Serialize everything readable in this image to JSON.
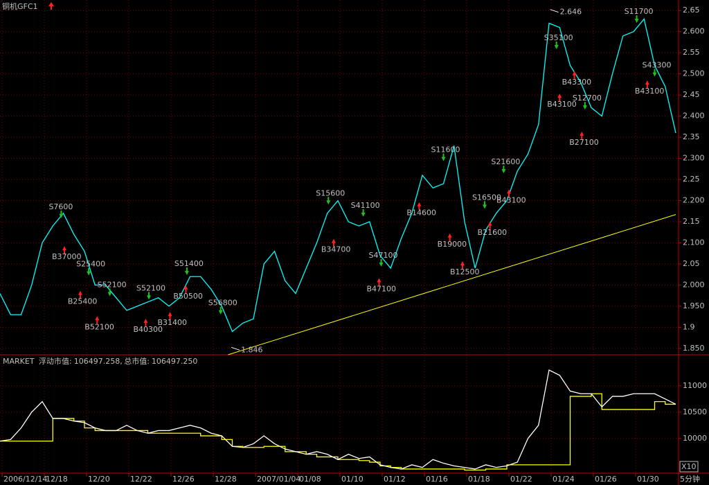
{
  "chart_data": [
    {
      "type": "line",
      "title": "铜机GFC1",
      "color": "#00ffff",
      "grid": true,
      "x": [
        0,
        1,
        2,
        3,
        4,
        5,
        6,
        7,
        8,
        9,
        10,
        11,
        12,
        13,
        14,
        15,
        16,
        17,
        18,
        19,
        20,
        21,
        22,
        23,
        24,
        25,
        26,
        27,
        28,
        29,
        30,
        31,
        32,
        33,
        34,
        35,
        36,
        37,
        38,
        39,
        40,
        41,
        42,
        43,
        44,
        45,
        46,
        47,
        48,
        49,
        50,
        51,
        52,
        53,
        54,
        55,
        56,
        57,
        58,
        59,
        60,
        61,
        62,
        63,
        64
      ],
      "values": [
        1.98,
        1.93,
        1.93,
        2.0,
        2.1,
        2.14,
        2.17,
        2.12,
        2.08,
        2.0,
        2.0,
        1.97,
        1.94,
        1.95,
        1.96,
        1.97,
        1.95,
        1.97,
        2.02,
        2.02,
        1.99,
        1.95,
        1.89,
        1.91,
        1.92,
        2.05,
        2.08,
        2.01,
        1.98,
        2.04,
        2.1,
        2.17,
        2.2,
        2.15,
        2.14,
        2.15,
        2.07,
        2.04,
        2.11,
        2.17,
        2.26,
        2.23,
        2.24,
        2.33,
        2.15,
        2.04,
        2.13,
        2.17,
        2.2,
        2.27,
        2.31,
        2.38,
        2.62,
        2.61,
        2.52,
        2.48,
        2.42,
        2.4,
        2.5,
        2.59,
        2.6,
        2.63,
        2.52,
        2.47,
        2.36
      ],
      "xlim": [
        0,
        64
      ],
      "ylim": [
        1.835,
        2.675
      ],
      "yticks": [
        {
          "value": 1.85,
          "label": "1.850"
        },
        1.9,
        {
          "value": 1.95,
          "label": "1.950"
        },
        {
          "value": 2.0,
          "label": "2.000"
        },
        2.05,
        {
          "value": 2.1,
          "label": "2.100"
        },
        2.15,
        {
          "value": 2.2,
          "label": "2.200"
        },
        2.25,
        {
          "value": 2.3,
          "label": "2.300"
        },
        2.35,
        {
          "value": 2.4,
          "label": "2.400"
        },
        2.45,
        {
          "value": 2.5,
          "label": "2.500"
        },
        2.55,
        {
          "value": 2.6,
          "label": "2.600"
        },
        2.65
      ],
      "xticks": [
        {
          "value": 0,
          "label": "2006/12/14"
        },
        {
          "value": 4,
          "label": "12/18"
        },
        {
          "value": 8,
          "label": "12/20"
        },
        {
          "value": 12,
          "label": "12/22"
        },
        {
          "value": 16,
          "label": "12/26"
        },
        {
          "value": 20,
          "label": "12/28"
        },
        {
          "value": 24,
          "label": "2007/01/04"
        },
        {
          "value": 28,
          "label": "01/08"
        },
        {
          "value": 32,
          "label": "01/10"
        },
        {
          "value": 36,
          "label": "01/12"
        },
        {
          "value": 40,
          "label": "01/16"
        },
        {
          "value": 44,
          "label": "01/18"
        },
        {
          "value": 48,
          "label": "01/22"
        },
        {
          "value": 52,
          "label": "01/24"
        },
        {
          "value": 56,
          "label": "01/26"
        },
        {
          "value": 60,
          "label": "01/30"
        }
      ],
      "trendline": {
        "color": "#ffff00",
        "x": [
          21.6,
          64
        ],
        "values": [
          1.835,
          2.167
        ]
      },
      "extremes": [
        {
          "label": "2.646",
          "x": 52.5,
          "y": 2.646
        },
        {
          "label": "1.846",
          "x": 22.3,
          "y": 1.846
        }
      ],
      "annotations": [
        {
          "label": "S7600",
          "x": 5.8,
          "y": 2.175
        },
        {
          "label": "B37000",
          "x": 6.1,
          "y": 2.076
        },
        {
          "label": "S25400",
          "x": 8.4,
          "y": 2.039
        },
        {
          "label": "B25400",
          "x": 7.6,
          "y": 1.97
        },
        {
          "label": "S52100",
          "x": 10.4,
          "y": 1.99
        },
        {
          "label": "B52100",
          "x": 9.2,
          "y": 1.91
        },
        {
          "label": "S52100",
          "x": 14.1,
          "y": 1.982
        },
        {
          "label": "B40300",
          "x": 13.8,
          "y": 1.904
        },
        {
          "label": "B31400",
          "x": 16.1,
          "y": 1.92
        },
        {
          "label": "S51400",
          "x": 17.7,
          "y": 2.04
        },
        {
          "label": "B50500",
          "x": 17.6,
          "y": 1.983
        },
        {
          "label": "S56800",
          "x": 20.9,
          "y": 1.947
        },
        {
          "label": "S15600",
          "x": 31.1,
          "y": 2.207
        },
        {
          "label": "S41100",
          "x": 34.4,
          "y": 2.178
        },
        {
          "label": "B34700",
          "x": 31.6,
          "y": 2.093
        },
        {
          "label": "S47100",
          "x": 36.1,
          "y": 2.06
        },
        {
          "label": "B47100",
          "x": 35.9,
          "y": 2.0
        },
        {
          "label": "S11600",
          "x": 42,
          "y": 2.31
        },
        {
          "label": "B14600",
          "x": 39.7,
          "y": 2.18
        },
        {
          "label": "B19000",
          "x": 42.6,
          "y": 2.106
        },
        {
          "label": "B12500",
          "x": 43.8,
          "y": 2.04
        },
        {
          "label": "S16500",
          "x": 45.9,
          "y": 2.197
        },
        {
          "label": "B21600",
          "x": 46.4,
          "y": 2.134
        },
        {
          "label": "S21600",
          "x": 47.7,
          "y": 2.281
        },
        {
          "label": "B43100",
          "x": 48.2,
          "y": 2.21
        },
        {
          "label": "S35100",
          "x": 52.7,
          "y": 2.575
        },
        {
          "label": "B43100",
          "x": 53,
          "y": 2.437
        },
        {
          "label": "B43300",
          "x": 54.4,
          "y": 2.49
        },
        {
          "label": "S12700",
          "x": 55.4,
          "y": 2.432
        },
        {
          "label": "B27100",
          "x": 55.1,
          "y": 2.347
        },
        {
          "label": "S11700",
          "x": 60.3,
          "y": 2.637
        },
        {
          "label": "B43100",
          "x": 61.3,
          "y": 2.468
        },
        {
          "label": "S43300",
          "x": 62,
          "y": 2.51
        }
      ]
    },
    {
      "type": "line",
      "title": "MARKET",
      "unit_label": "X10",
      "period": "5分钟",
      "x": [
        0,
        1,
        2,
        3,
        4,
        5,
        6,
        7,
        8,
        9,
        10,
        11,
        12,
        13,
        14,
        15,
        16,
        17,
        18,
        19,
        20,
        21,
        22,
        23,
        24,
        25,
        26,
        27,
        28,
        29,
        30,
        31,
        32,
        33,
        34,
        35,
        36,
        37,
        38,
        39,
        40,
        41,
        42,
        43,
        44,
        45,
        46,
        47,
        48,
        49,
        50,
        51,
        52,
        53,
        54,
        55,
        56,
        57,
        58,
        59,
        60,
        61,
        62,
        63,
        64
      ],
      "xlim": [
        0,
        64
      ],
      "ylim": [
        9340,
        11590
      ],
      "yticks": [
        10000,
        10500,
        11000
      ],
      "series": [
        {
          "name": "浮动市值:",
          "color": "#ffffff",
          "current": 106497.258,
          "values": [
            9950,
            9980,
            10200,
            10500,
            10700,
            10380,
            10380,
            10330,
            10300,
            10200,
            10150,
            10150,
            10250,
            10150,
            10100,
            10150,
            10150,
            10200,
            10250,
            10200,
            10100,
            10050,
            9850,
            9830,
            9900,
            10050,
            9900,
            9800,
            9750,
            9700,
            9750,
            9700,
            9600,
            9700,
            9620,
            9650,
            9500,
            9450,
            9420,
            9500,
            9450,
            9600,
            9530,
            9480,
            9450,
            9420,
            9500,
            9450,
            9480,
            9550,
            10000,
            10250,
            11300,
            11200,
            10900,
            10850,
            10850,
            10600,
            10800,
            10800,
            10850,
            10850,
            10850,
            10750,
            10650
          ]
        },
        {
          "name": "总市值:",
          "color": "#ffff00",
          "step": true,
          "current": 106497.25,
          "current_label": "106497.250",
          "values": [
            9950,
            9950,
            9950,
            9950,
            9950,
            10380,
            10380,
            10330,
            10200,
            10150,
            10150,
            10150,
            10150,
            10150,
            10100,
            10100,
            10100,
            10100,
            10100,
            10050,
            10050,
            9980,
            9850,
            9830,
            9830,
            9850,
            9850,
            9750,
            9750,
            9700,
            9650,
            9650,
            9600,
            9600,
            9580,
            9550,
            9480,
            9450,
            9420,
            9420,
            9420,
            9420,
            9420,
            9420,
            9400,
            9400,
            9420,
            9420,
            9500,
            9500,
            9500,
            9500,
            9500,
            9500,
            10800,
            10800,
            10850,
            10550,
            10550,
            10550,
            10550,
            10550,
            10700,
            10650,
            10650
          ]
        }
      ]
    }
  ]
}
